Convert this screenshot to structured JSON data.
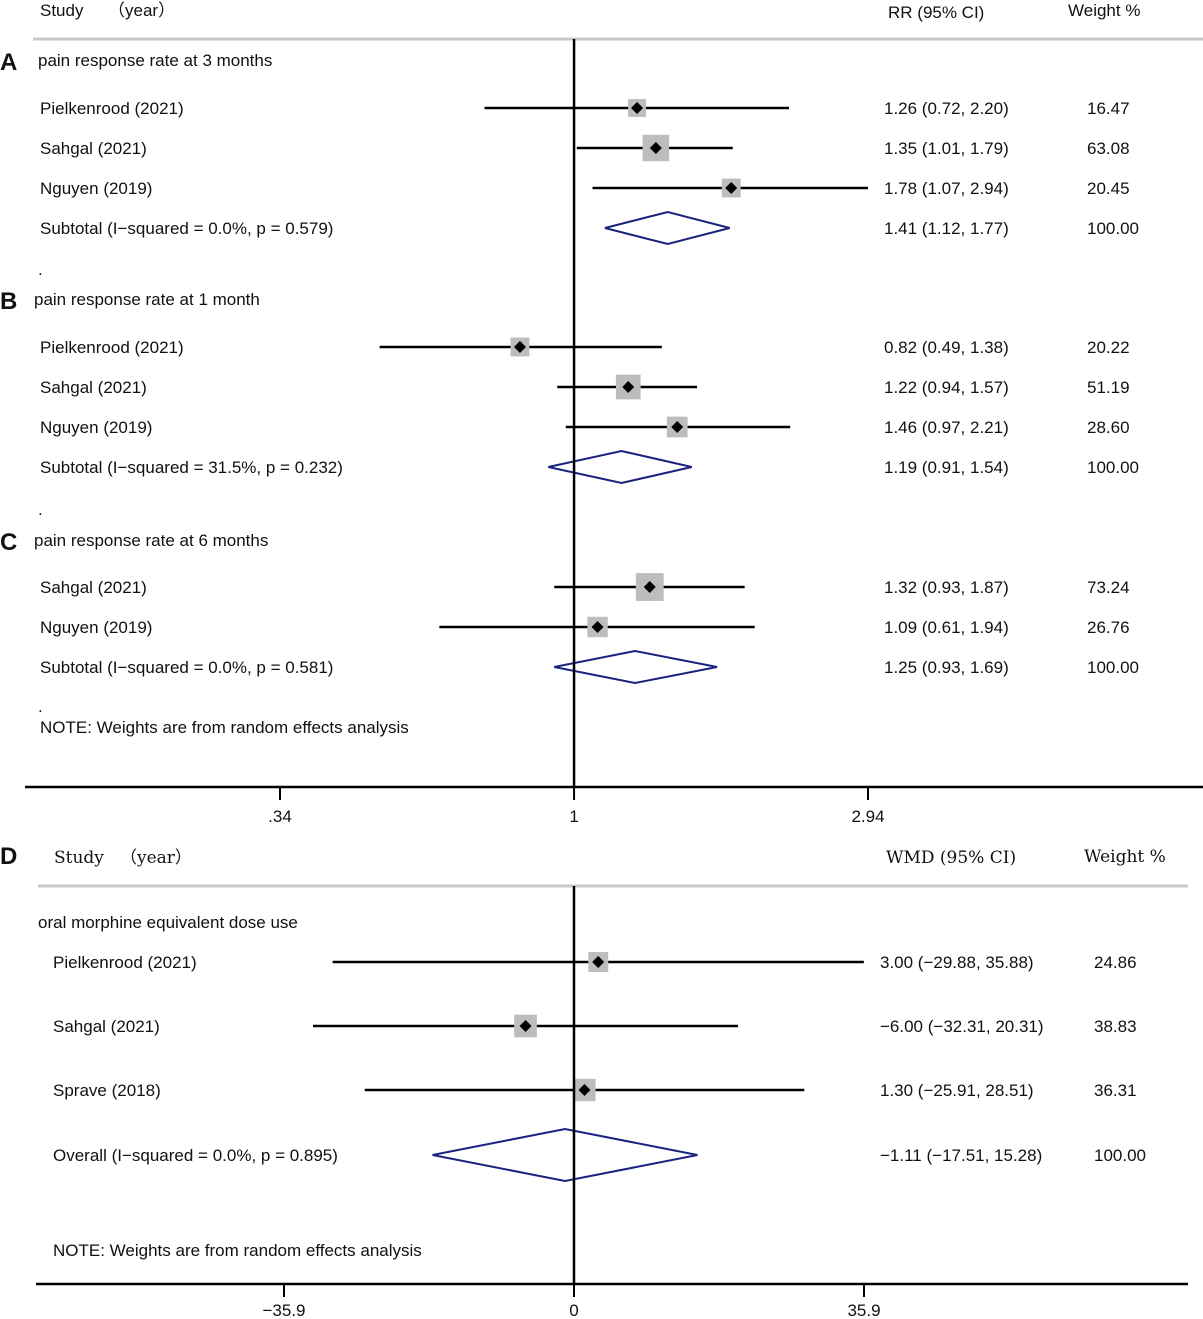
{
  "colors": {
    "line": "#000000",
    "marker_box": "#bdbdbd",
    "diamond": "#1a237e",
    "header_rule": "#c8c8c8",
    "text": "#111111"
  },
  "top": {
    "header": {
      "study": "Study",
      "year": "（year）",
      "effect": "RR (95% CI)",
      "weight": "Weight %"
    },
    "axis": {
      "ticks": [
        0.34,
        1,
        2.94
      ],
      "tick_labels": [
        ".34",
        "1",
        "2.94"
      ],
      "null_value": 1
    },
    "note": "NOTE: Weights are from random effects analysis",
    "panels": [
      {
        "letter": "A",
        "title": "pain response rate at 3 months",
        "studies": [
          {
            "label": "Pielkenrood (2021)",
            "rr": 1.26,
            "lo": 0.72,
            "hi": 2.2,
            "ci_text": "1.26 (0.72, 2.20)",
            "weight": 16.47,
            "weight_text": "16.47"
          },
          {
            "label": "Sahgal (2021)",
            "rr": 1.35,
            "lo": 1.01,
            "hi": 1.79,
            "ci_text": "1.35 (1.01, 1.79)",
            "weight": 63.08,
            "weight_text": "63.08"
          },
          {
            "label": "Nguyen (2019)",
            "rr": 1.78,
            "lo": 1.07,
            "hi": 2.94,
            "ci_text": "1.78 (1.07, 2.94)",
            "weight": 20.45,
            "weight_text": "20.45"
          }
        ],
        "subtotal": {
          "label": "Subtotal  (I−squared = 0.0%, p = 0.579)",
          "rr": 1.41,
          "lo": 1.12,
          "hi": 1.77,
          "ci_text": "1.41 (1.12, 1.77)",
          "weight_text": "100.00"
        }
      },
      {
        "letter": "B",
        "title": "pain response rate at 1 month",
        "studies": [
          {
            "label": "Pielkenrood (2021)",
            "rr": 0.82,
            "lo": 0.49,
            "hi": 1.38,
            "ci_text": "0.82 (0.49, 1.38)",
            "weight": 20.22,
            "weight_text": "20.22"
          },
          {
            "label": "Sahgal (2021)",
            "rr": 1.22,
            "lo": 0.94,
            "hi": 1.57,
            "ci_text": "1.22 (0.94, 1.57)",
            "weight": 51.19,
            "weight_text": "51.19"
          },
          {
            "label": "Nguyen (2019)",
            "rr": 1.46,
            "lo": 0.97,
            "hi": 2.21,
            "ci_text": "1.46 (0.97, 2.21)",
            "weight": 28.6,
            "weight_text": "28.60"
          }
        ],
        "subtotal": {
          "label": "Subtotal  (I−squared = 31.5%, p = 0.232)",
          "rr": 1.19,
          "lo": 0.91,
          "hi": 1.54,
          "ci_text": "1.19 (0.91, 1.54)",
          "weight_text": "100.00"
        }
      },
      {
        "letter": "C",
        "title": "pain response rate at 6 months",
        "studies": [
          {
            "label": "Sahgal (2021)",
            "rr": 1.32,
            "lo": 0.93,
            "hi": 1.87,
            "ci_text": "1.32 (0.93, 1.87)",
            "weight": 73.24,
            "weight_text": "73.24"
          },
          {
            "label": "Nguyen (2019)",
            "rr": 1.09,
            "lo": 0.61,
            "hi": 1.94,
            "ci_text": "1.09 (0.61, 1.94)",
            "weight": 26.76,
            "weight_text": "26.76"
          }
        ],
        "subtotal": {
          "label": "Subtotal  (I−squared = 0.0%, p = 0.581)",
          "rr": 1.25,
          "lo": 0.93,
          "hi": 1.69,
          "ci_text": "1.25 (0.93, 1.69)",
          "weight_text": "100.00"
        }
      }
    ]
  },
  "bottom": {
    "letter": "D",
    "header": {
      "study": "Study",
      "year": "（year）",
      "effect": "WMD (95% CI)",
      "weight": "Weight %"
    },
    "title": "oral morphine equivalent dose use",
    "axis": {
      "ticks": [
        -35.9,
        0,
        35.9
      ],
      "tick_labels": [
        "−35.9",
        "0",
        "35.9"
      ],
      "null_value": 0
    },
    "note": "NOTE: Weights are from random effects analysis",
    "studies": [
      {
        "label": "Pielkenrood (2021)",
        "wmd": 3.0,
        "lo": -29.88,
        "hi": 35.88,
        "ci_text": "3.00 (−29.88, 35.88)",
        "weight": 24.86,
        "weight_text": "24.86"
      },
      {
        "label": "Sahgal (2021)",
        "wmd": -6.0,
        "lo": -32.31,
        "hi": 20.31,
        "ci_text": "−6.00 (−32.31, 20.31)",
        "weight": 38.83,
        "weight_text": "38.83"
      },
      {
        "label": "Sprave (2018)",
        "wmd": 1.3,
        "lo": -25.91,
        "hi": 28.51,
        "ci_text": "1.30 (−25.91, 28.51)",
        "weight": 36.31,
        "weight_text": "36.31"
      }
    ],
    "overall": {
      "label": "Overall  (I−squared = 0.0%, p = 0.895)",
      "wmd": -1.11,
      "lo": -17.51,
      "hi": 15.28,
      "ci_text": "−1.11 (−17.51, 15.28)",
      "weight_text": "100.00"
    }
  },
  "chart_data": [
    {
      "type": "forest",
      "title": "",
      "measure": "RR (95% CI)",
      "scale": "log",
      "xlim": [
        0.34,
        2.94
      ],
      "xticks": [
        0.34,
        1,
        2.94
      ],
      "groups": [
        {
          "name": "pain response rate at 3 months",
          "studies": [
            {
              "study": "Pielkenrood (2021)",
              "estimate": 1.26,
              "lower": 0.72,
              "upper": 2.2,
              "weight": 16.47
            },
            {
              "study": "Sahgal (2021)",
              "estimate": 1.35,
              "lower": 1.01,
              "upper": 1.79,
              "weight": 63.08
            },
            {
              "study": "Nguyen (2019)",
              "estimate": 1.78,
              "lower": 1.07,
              "upper": 2.94,
              "weight": 20.45
            }
          ],
          "subtotal": {
            "estimate": 1.41,
            "lower": 1.12,
            "upper": 1.77,
            "i_squared": "0.0%",
            "p": 0.579
          }
        },
        {
          "name": "pain response rate at 1 month",
          "studies": [
            {
              "study": "Pielkenrood (2021)",
              "estimate": 0.82,
              "lower": 0.49,
              "upper": 1.38,
              "weight": 20.22
            },
            {
              "study": "Sahgal (2021)",
              "estimate": 1.22,
              "lower": 0.94,
              "upper": 1.57,
              "weight": 51.19
            },
            {
              "study": "Nguyen (2019)",
              "estimate": 1.46,
              "lower": 0.97,
              "upper": 2.21,
              "weight": 28.6
            }
          ],
          "subtotal": {
            "estimate": 1.19,
            "lower": 0.91,
            "upper": 1.54,
            "i_squared": "31.5%",
            "p": 0.232
          }
        },
        {
          "name": "pain response rate at 6 months",
          "studies": [
            {
              "study": "Sahgal (2021)",
              "estimate": 1.32,
              "lower": 0.93,
              "upper": 1.87,
              "weight": 73.24
            },
            {
              "study": "Nguyen (2019)",
              "estimate": 1.09,
              "lower": 0.61,
              "upper": 1.94,
              "weight": 26.76
            }
          ],
          "subtotal": {
            "estimate": 1.25,
            "lower": 0.93,
            "upper": 1.69,
            "i_squared": "0.0%",
            "p": 0.581
          }
        }
      ]
    },
    {
      "type": "forest",
      "title": "",
      "measure": "WMD (95% CI)",
      "scale": "linear",
      "xlim": [
        -35.9,
        35.9
      ],
      "xticks": [
        -35.9,
        0,
        35.9
      ],
      "groups": [
        {
          "name": "oral morphine equivalent dose use",
          "studies": [
            {
              "study": "Pielkenrood (2021)",
              "estimate": 3.0,
              "lower": -29.88,
              "upper": 35.88,
              "weight": 24.86
            },
            {
              "study": "Sahgal (2021)",
              "estimate": -6.0,
              "lower": -32.31,
              "upper": 20.31,
              "weight": 38.83
            },
            {
              "study": "Sprave (2018)",
              "estimate": 1.3,
              "lower": -25.91,
              "upper": 28.51,
              "weight": 36.31
            }
          ],
          "subtotal": {
            "estimate": -1.11,
            "lower": -17.51,
            "upper": 15.28,
            "i_squared": "0.0%",
            "p": 0.895
          }
        }
      ]
    }
  ]
}
